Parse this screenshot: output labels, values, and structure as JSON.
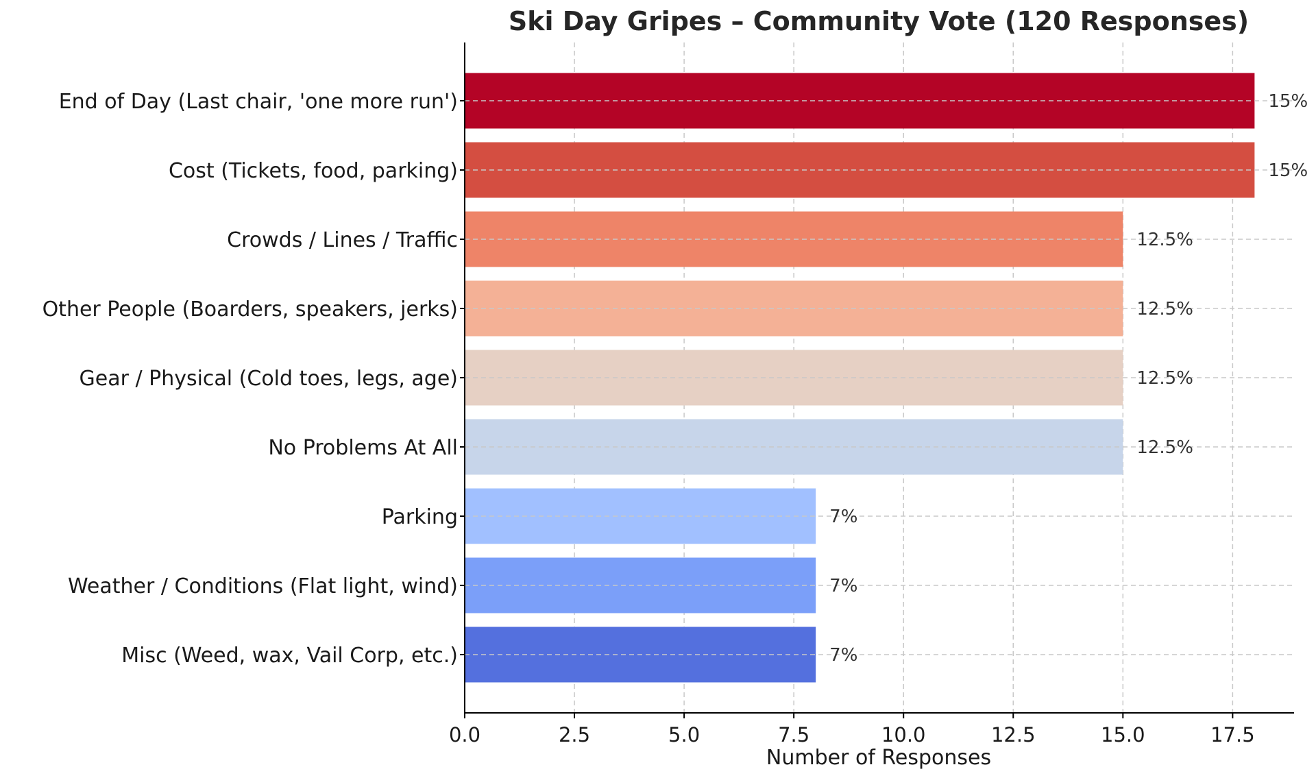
{
  "chart_data": {
    "type": "bar",
    "orientation": "horizontal",
    "title": "Ski Day Gripes – Community Vote (120 Responses)",
    "xlabel": "Number of Responses",
    "ylabel": "",
    "xlim": [
      0,
      18.9
    ],
    "xticks": [
      0,
      2.5,
      5,
      7.5,
      10,
      12.5,
      15,
      17.5
    ],
    "xtick_labels": [
      "0.0",
      "2.5",
      "5.0",
      "7.5",
      "10.0",
      "12.5",
      "15.0",
      "17.5"
    ],
    "grid": true,
    "categories": [
      "End of Day (Last chair, 'one more run')",
      "Cost (Tickets, food, parking)",
      "Crowds / Lines / Traffic",
      "Other People (Boarders, speakers, jerks)",
      "Gear / Physical (Cold toes, legs, age)",
      "No Problems At All",
      "Parking",
      "Weather / Conditions (Flat light, wind)",
      "Misc (Weed, wax, Vail Corp, etc.)"
    ],
    "values": [
      18,
      18,
      15,
      15,
      15,
      15,
      8,
      8,
      8
    ],
    "data_labels": [
      "15%",
      "15%",
      "12.5%",
      "12.5%",
      "12.5%",
      "12.5%",
      "7%",
      "7%",
      "7%"
    ],
    "colors": [
      "#b40426",
      "#d44e41",
      "#ee8468",
      "#f4b196",
      "#e6d0c4",
      "#c7d5ea",
      "#a1c0ff",
      "#7b9ff9",
      "#5470de"
    ]
  }
}
